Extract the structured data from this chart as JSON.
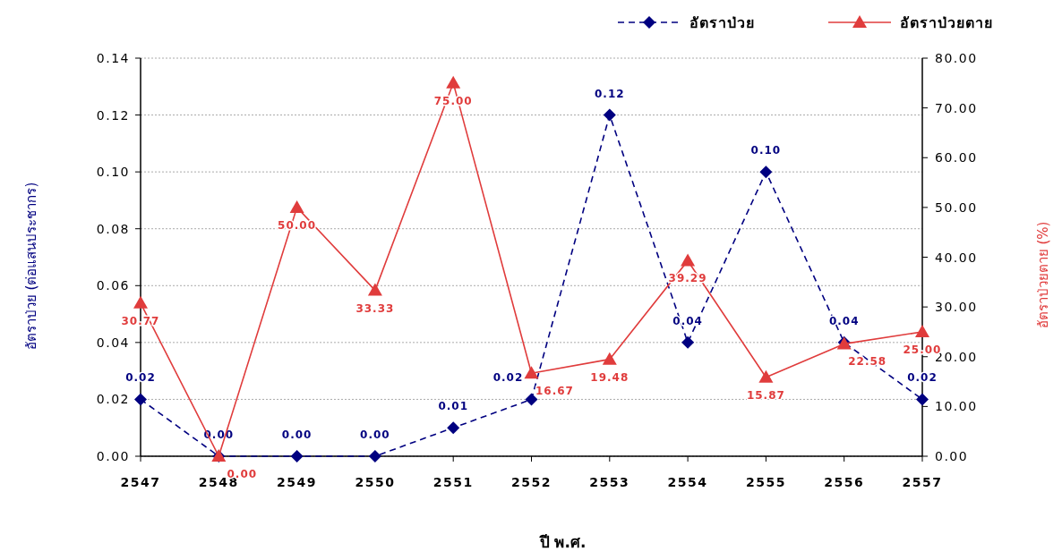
{
  "chart_data": {
    "type": "line",
    "categories": [
      "2547",
      "2548",
      "2549",
      "2550",
      "2551",
      "2552",
      "2553",
      "2554",
      "2555",
      "2556",
      "2557"
    ],
    "series": [
      {
        "name": "อัตราป่วย",
        "color": "#000080",
        "marker": "diamond",
        "line_style": "dashed",
        "values": [
          0.02,
          0.0,
          0.0,
          0.0,
          0.01,
          0.02,
          0.12,
          0.04,
          0.1,
          0.04,
          0.02
        ],
        "value_labels": [
          "0.02",
          "0.00",
          "0.00",
          "0.00",
          "0.01",
          "0.02",
          "0.12",
          "0.04",
          "0.10",
          "0.04",
          "0.02"
        ]
      },
      {
        "name": "อัตราป่วยตาย",
        "color": "#e03c3c",
        "marker": "triangle",
        "line_style": "solid",
        "axis": "y2",
        "values": [
          30.77,
          0.0,
          50.0,
          33.33,
          75.0,
          16.67,
          19.48,
          39.29,
          15.87,
          22.58,
          25.0
        ],
        "value_labels": [
          "30.77",
          "0.00",
          "50.00",
          "33.33",
          "75.00",
          "16.67",
          "19.48",
          "39.29",
          "15.87",
          "22.58",
          "25.00"
        ]
      }
    ],
    "xlabel": "ปี พ.ศ.",
    "ylabel": "อัตราป่วย (ต่อแสนประชากร)",
    "y2label": "อัตราป่วยตาย (%)",
    "ylim": [
      0,
      0.14
    ],
    "yticks": [
      {
        "value": 0,
        "label": "0.00"
      },
      {
        "value": 0.02,
        "label": "0.02"
      },
      {
        "value": 0.04,
        "label": "0.04"
      },
      {
        "value": 0.06,
        "label": "0.06"
      },
      {
        "value": 0.08,
        "label": "0.08"
      },
      {
        "value": 0.1,
        "label": "0.10"
      },
      {
        "value": 0.12,
        "label": "0.12"
      },
      {
        "value": 0.14,
        "label": "0.14"
      }
    ],
    "y2lim": [
      0,
      80
    ],
    "y2ticks": [
      {
        "value": 0,
        "label": "0.00"
      },
      {
        "value": 10,
        "label": "10.00"
      },
      {
        "value": 20,
        "label": "20.00"
      },
      {
        "value": 30,
        "label": "30.00"
      },
      {
        "value": 40,
        "label": "40.00"
      },
      {
        "value": 50,
        "label": "50.00"
      },
      {
        "value": 60,
        "label": "60.00"
      },
      {
        "value": 70,
        "label": "70.00"
      },
      {
        "value": 80,
        "label": "80.00"
      }
    ],
    "grid": "y",
    "legend": "top right"
  }
}
